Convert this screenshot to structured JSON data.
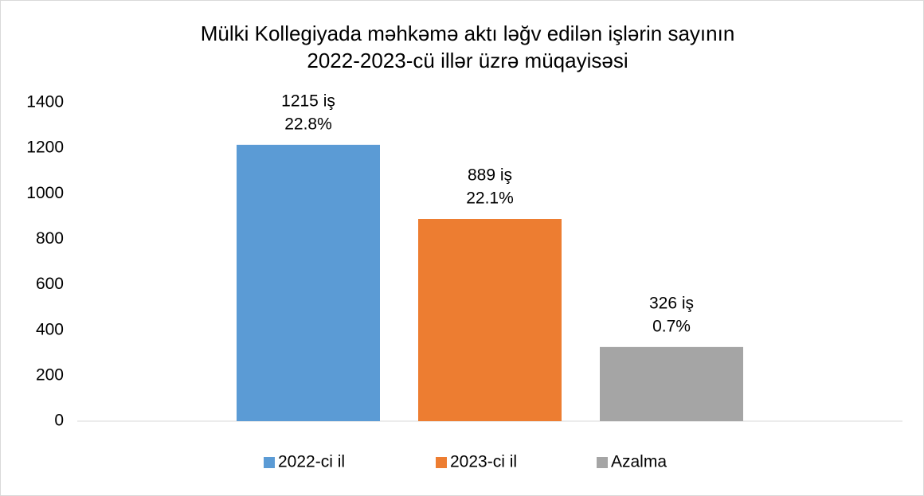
{
  "chart_data": {
    "type": "bar",
    "title": [
      "Mülki Kollegiyada məhkəmə aktı ləğv edilən işlərin sayının",
      "2022-2023-cü illər üzrə müqayisəsi"
    ],
    "categories": [
      null
    ],
    "series": [
      {
        "name": "2022-ci il",
        "color": "#5b9bd5",
        "values": [
          1215
        ],
        "value_labels": [
          "1215 iş"
        ],
        "share_labels": [
          "22.8%"
        ]
      },
      {
        "name": "2023-ci il",
        "color": "#ed7d31",
        "values": [
          889
        ],
        "value_labels": [
          "889 iş"
        ],
        "share_labels": [
          "22.1%"
        ]
      },
      {
        "name": "Azalma",
        "color": "#a5a5a5",
        "values": [
          326
        ],
        "value_labels": [
          "326 iş"
        ],
        "share_labels": [
          "0.7%"
        ]
      }
    ],
    "ylim": [
      0,
      1400
    ],
    "yticks": [
      0,
      200,
      400,
      600,
      800,
      1000,
      1200,
      1400
    ],
    "grid": false,
    "legend": "bottom"
  }
}
